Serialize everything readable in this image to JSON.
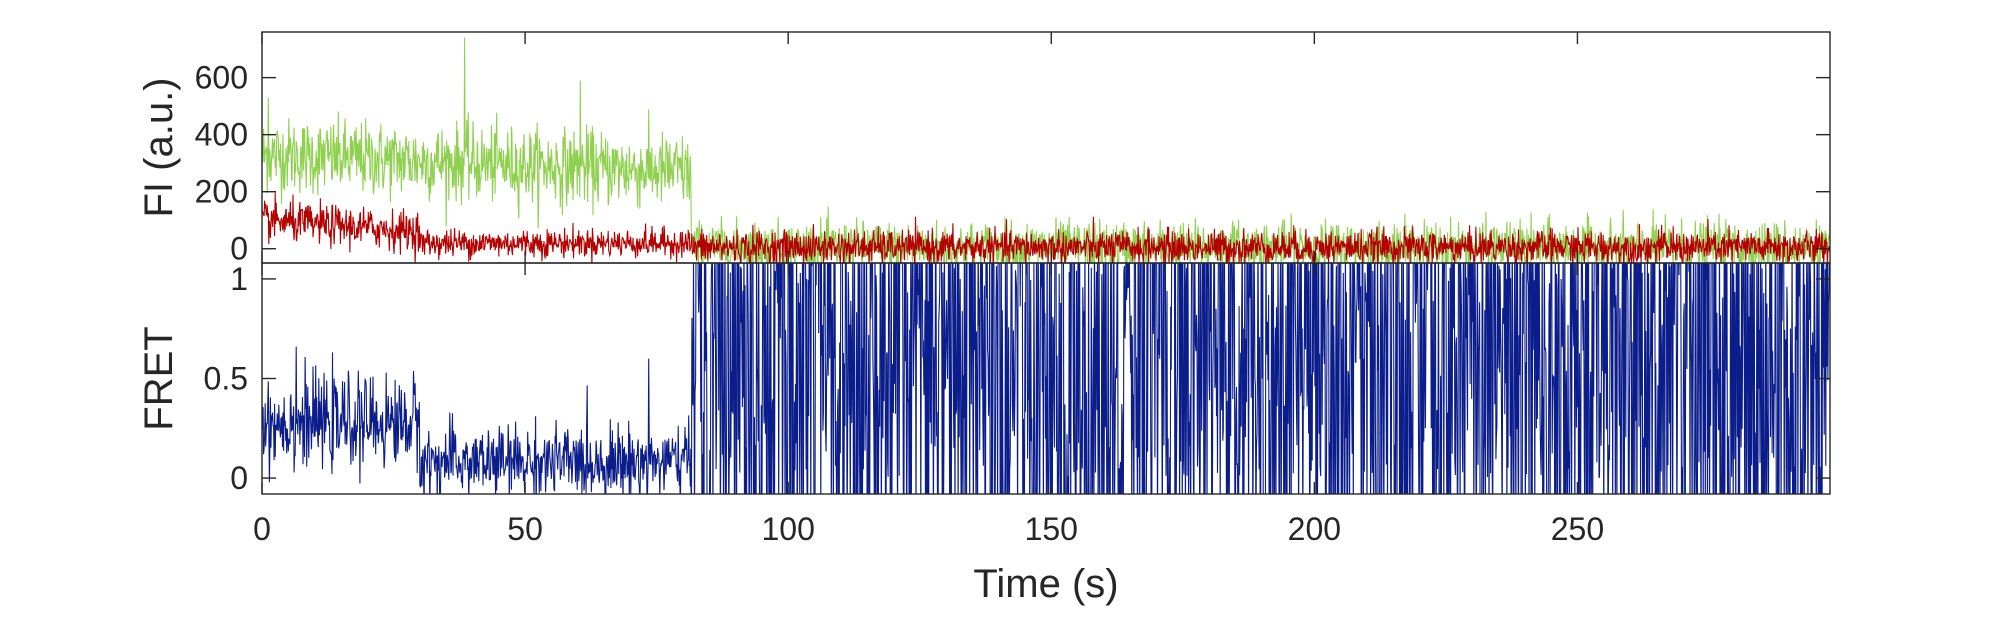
{
  "chart_data": [
    {
      "type": "line",
      "ylabel": "FI (a.u.)",
      "xlim": [
        0,
        298
      ],
      "ylim": [
        -50,
        760
      ],
      "yticks": [
        0,
        200,
        400,
        600
      ],
      "ytick_labels": [
        "0",
        "200",
        "400",
        "600"
      ],
      "xticks": [
        0,
        50,
        100,
        150,
        200,
        250
      ],
      "grid": false,
      "series": [
        {
          "color": "#8fd14f",
          "segments": [
            {
              "t_start": 0,
              "t_end": 81.5,
              "mean": 290,
              "noise_sd": 65,
              "trend": "slow decay from ~330 to ~270"
            },
            {
              "t_start": 81.5,
              "t_end": 298,
              "mean": 5,
              "noise_sd": 45
            }
          ],
          "peaks": [
            {
              "x": 38.5,
              "y": 740
            },
            {
              "x": 60.5,
              "y": 590
            },
            {
              "x": 1.2,
              "y": 530
            }
          ]
        },
        {
          "color": "#b50000",
          "segments": [
            {
              "t_start": 0,
              "t_end": 30,
              "mean": 85,
              "noise_sd": 35,
              "trend": "decay from ~100 to ~60"
            },
            {
              "t_start": 30,
              "t_end": 81.5,
              "mean": 20,
              "noise_sd": 25
            },
            {
              "t_start": 81.5,
              "t_end": 298,
              "mean": 5,
              "noise_sd": 30
            }
          ]
        }
      ]
    },
    {
      "type": "line",
      "ylabel": "FRET",
      "xlabel": "Time (s)",
      "xlim": [
        0,
        298
      ],
      "ylim": [
        -0.08,
        1.08
      ],
      "yticks": [
        0,
        0.5,
        1
      ],
      "ytick_labels": [
        "0",
        "0.5",
        "1"
      ],
      "xticks": [
        0,
        50,
        100,
        150,
        200,
        250
      ],
      "xtick_labels": [
        "0",
        "50",
        "100",
        "150",
        "200",
        "250"
      ],
      "grid": false,
      "series": [
        {
          "color": "#0b1d8a",
          "segments": [
            {
              "t_start": 0,
              "t_end": 30,
              "mean": 0.28,
              "noise_sd": 0.11
            },
            {
              "t_start": 30,
              "t_end": 81.5,
              "mean": 0.08,
              "noise_sd": 0.09
            },
            {
              "t_start": 81.5,
              "t_end": 298,
              "mean": 0.5,
              "noise_sd": 0.45,
              "clipped": true
            }
          ],
          "peaks": [
            {
              "x": 6.5,
              "y": 0.66
            },
            {
              "x": 73.5,
              "y": 0.6
            }
          ]
        }
      ]
    }
  ]
}
